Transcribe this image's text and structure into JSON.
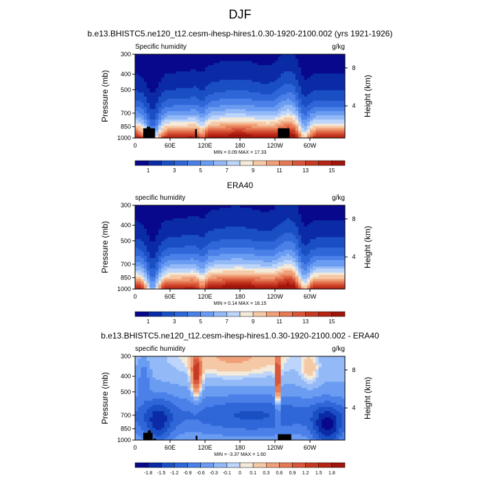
{
  "figure_title": "DJF",
  "chart_data": [
    {
      "type": "heatmap",
      "title": "b.e13.BHISTC5.ne120_t12.cesm-ihesp-hires1.0.30-1920-2100.002 (yrs 1921-1926)",
      "left_string": "Specific humidity",
      "right_string": "g/kg",
      "xlabel": "",
      "ylabel": "Pressure (mb)",
      "y2label": "Height (km)",
      "xticks": [
        "60E",
        "120E",
        "180",
        "120W",
        "60W"
      ],
      "xlim": [
        0,
        360
      ],
      "yticks": [
        "300",
        "400",
        "500",
        "700",
        "850",
        "1000"
      ],
      "ylim": [
        1000,
        300
      ],
      "y2ticks": [
        "8",
        "4"
      ],
      "stats": "MIN =   0.09  MAX =  17.33",
      "min": 0.09,
      "max": 17.33,
      "colorbar_labels": [
        "1",
        "3",
        "5",
        "7",
        "9",
        "11",
        "13",
        "15"
      ],
      "colorbar_levels": [
        0,
        1,
        2,
        3,
        4,
        5,
        6,
        7,
        8,
        9,
        10,
        11,
        12,
        13,
        14,
        15,
        16
      ]
    },
    {
      "type": "heatmap",
      "title": "ERA40",
      "left_string": "specific humidity",
      "right_string": "g/kg",
      "xlabel": "",
      "ylabel": "Pressure (mb)",
      "y2label": "Height (km)",
      "xticks": [
        "60E",
        "120E",
        "180",
        "120W",
        "60W"
      ],
      "xlim": [
        0,
        360
      ],
      "yticks": [
        "300",
        "400",
        "500",
        "700",
        "850",
        "1000"
      ],
      "ylim": [
        1000,
        300
      ],
      "y2ticks": [
        "8",
        "4"
      ],
      "stats": "MIN =   0.14  MAX =  18.15",
      "min": 0.14,
      "max": 18.15,
      "colorbar_labels": [
        "1",
        "3",
        "5",
        "7",
        "9",
        "11",
        "13",
        "15"
      ],
      "colorbar_levels": [
        0,
        1,
        2,
        3,
        4,
        5,
        6,
        7,
        8,
        9,
        10,
        11,
        12,
        13,
        14,
        15,
        16
      ]
    },
    {
      "type": "heatmap",
      "title": "b.e13.BHISTC5.ne120_t12.cesm-ihesp-hires1.0.30-1920-2100.002 - ERA40",
      "left_string": "specific humidity",
      "right_string": "g/kg",
      "xlabel": "",
      "ylabel": "Pressure (mb)",
      "y2label": "Height (km)",
      "xticks": [
        "60E",
        "120E",
        "180",
        "120W",
        "60W"
      ],
      "xlim": [
        0,
        360
      ],
      "yticks": [
        "300",
        "400",
        "500",
        "700",
        "850",
        "1000"
      ],
      "ylim": [
        1000,
        300
      ],
      "y2ticks": [
        "8",
        "4"
      ],
      "stats": "MIN =  -3.37  MAX =   1.60",
      "min": -3.37,
      "max": 1.6,
      "colorbar_labels": [
        "-1.8",
        "-1.5",
        "-1.2",
        "-0.9",
        "-0.6",
        "-0.3",
        "-0.1",
        "0",
        "0.1",
        "0.3",
        "0.6",
        "0.9",
        "1.2",
        "1.5",
        "1.8"
      ],
      "colorbar_levels": [
        -2.1,
        -1.8,
        -1.5,
        -1.2,
        -0.9,
        -0.6,
        -0.3,
        -0.1,
        0,
        0.1,
        0.3,
        0.6,
        0.9,
        1.2,
        1.5,
        1.8,
        2.1
      ]
    }
  ],
  "colors": {
    "palette": [
      "#08088c",
      "#0a2aa6",
      "#1a4fc4",
      "#2f66d8",
      "#4a80e8",
      "#6a9cf2",
      "#93b9f7",
      "#bdd5fb",
      "#f4ead9",
      "#f6c9a6",
      "#f0a079",
      "#e57a55",
      "#d9563a",
      "#c63a23",
      "#b52414",
      "#a0150b"
    ],
    "terrain": "#000000"
  }
}
